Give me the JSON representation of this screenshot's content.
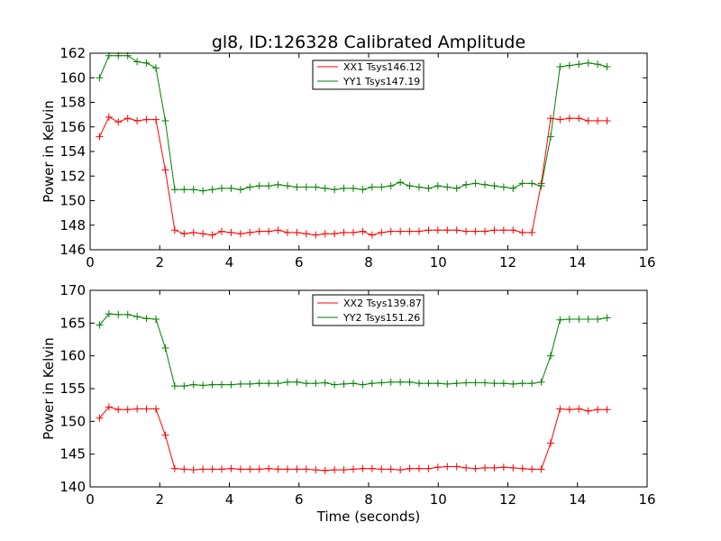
{
  "chart_data": [
    {
      "type": "line",
      "title": "gl8, ID:126328 Calibrated Amplitude",
      "xlabel": "",
      "ylabel": "Power in Kelvin",
      "xlim": [
        0,
        16
      ],
      "ylim": [
        146,
        162
      ],
      "xticks": [
        "0",
        "2",
        "4",
        "6",
        "8",
        "10",
        "12",
        "14",
        "16"
      ],
      "yticks": [
        "146",
        "148",
        "150",
        "152",
        "154",
        "156",
        "158",
        "160",
        "162"
      ],
      "legend_position": "top-center",
      "grid": false,
      "x": [
        0.27,
        0.54,
        0.81,
        1.08,
        1.35,
        1.62,
        1.89,
        2.16,
        2.43,
        2.7,
        2.97,
        3.24,
        3.51,
        3.78,
        4.05,
        4.32,
        4.59,
        4.86,
        5.13,
        5.4,
        5.67,
        5.94,
        6.21,
        6.48,
        6.75,
        7.02,
        7.29,
        7.56,
        7.83,
        8.1,
        8.37,
        8.64,
        8.91,
        9.18,
        9.45,
        9.72,
        9.99,
        10.26,
        10.53,
        10.8,
        11.07,
        11.34,
        11.61,
        11.88,
        12.15,
        12.42,
        12.69,
        12.96,
        13.23,
        13.5,
        13.77,
        14.04,
        14.31,
        14.58,
        14.85
      ],
      "series": [
        {
          "name": "XX1 Tsys146.12",
          "color": "#ff0000",
          "values": [
            155.2,
            156.8,
            156.4,
            156.7,
            156.5,
            156.6,
            156.6,
            152.5,
            147.6,
            147.3,
            147.4,
            147.3,
            147.2,
            147.5,
            147.4,
            147.3,
            147.4,
            147.5,
            147.5,
            147.6,
            147.4,
            147.4,
            147.3,
            147.2,
            147.3,
            147.3,
            147.4,
            147.4,
            147.5,
            147.2,
            147.4,
            147.5,
            147.5,
            147.5,
            147.5,
            147.6,
            147.6,
            147.6,
            147.6,
            147.5,
            147.5,
            147.5,
            147.6,
            147.6,
            147.6,
            147.4,
            147.4,
            151.4,
            156.7,
            156.6,
            156.7,
            156.7,
            156.5,
            156.5,
            156.5
          ]
        },
        {
          "name": "YY1 Tsys147.19",
          "color": "#008000",
          "values": [
            160.0,
            161.8,
            161.8,
            161.8,
            161.3,
            161.2,
            160.8,
            156.5,
            150.9,
            150.9,
            150.9,
            150.8,
            150.9,
            151.0,
            151.0,
            150.9,
            151.1,
            151.2,
            151.2,
            151.3,
            151.2,
            151.1,
            151.1,
            151.1,
            151.0,
            150.9,
            151.0,
            151.0,
            150.9,
            151.1,
            151.1,
            151.2,
            151.5,
            151.2,
            151.1,
            151.0,
            151.2,
            151.1,
            151.0,
            151.3,
            151.4,
            151.3,
            151.2,
            151.1,
            151.0,
            151.4,
            151.4,
            151.2,
            155.2,
            160.9,
            161.0,
            161.1,
            161.2,
            161.1,
            160.9
          ]
        }
      ]
    },
    {
      "type": "line",
      "title": "",
      "xlabel": "Time (seconds)",
      "ylabel": "Power in Kelvin",
      "xlim": [
        0,
        16
      ],
      "ylim": [
        140,
        170
      ],
      "xticks": [
        "0",
        "2",
        "4",
        "6",
        "8",
        "10",
        "12",
        "14",
        "16"
      ],
      "yticks": [
        "140",
        "145",
        "150",
        "155",
        "160",
        "165",
        "170"
      ],
      "legend_position": "top-center",
      "grid": false,
      "x": [
        0.27,
        0.54,
        0.81,
        1.08,
        1.35,
        1.62,
        1.89,
        2.16,
        2.43,
        2.7,
        2.97,
        3.24,
        3.51,
        3.78,
        4.05,
        4.32,
        4.59,
        4.86,
        5.13,
        5.4,
        5.67,
        5.94,
        6.21,
        6.48,
        6.75,
        7.02,
        7.29,
        7.56,
        7.83,
        8.1,
        8.37,
        8.64,
        8.91,
        9.18,
        9.45,
        9.72,
        9.99,
        10.26,
        10.53,
        10.8,
        11.07,
        11.34,
        11.61,
        11.88,
        12.15,
        12.42,
        12.69,
        12.96,
        13.23,
        13.5,
        13.77,
        14.04,
        14.31,
        14.58,
        14.85
      ],
      "series": [
        {
          "name": "XX2 Tsys139.87",
          "color": "#ff0000",
          "values": [
            150.5,
            152.2,
            151.8,
            151.8,
            151.9,
            151.9,
            151.9,
            147.9,
            142.8,
            142.7,
            142.6,
            142.7,
            142.7,
            142.7,
            142.8,
            142.7,
            142.7,
            142.7,
            142.8,
            142.7,
            142.7,
            142.7,
            142.7,
            142.6,
            142.5,
            142.6,
            142.6,
            142.7,
            142.8,
            142.8,
            142.7,
            142.7,
            142.6,
            142.8,
            142.8,
            142.8,
            143.0,
            143.1,
            143.1,
            142.9,
            142.8,
            142.9,
            142.9,
            143.0,
            142.9,
            142.8,
            142.7,
            142.7,
            146.7,
            151.9,
            151.8,
            151.9,
            151.6,
            151.8,
            151.8
          ]
        },
        {
          "name": "YY2 Tsys151.26",
          "color": "#008000",
          "values": [
            164.7,
            166.4,
            166.3,
            166.3,
            166.0,
            165.7,
            165.6,
            161.2,
            155.4,
            155.4,
            155.6,
            155.5,
            155.6,
            155.6,
            155.6,
            155.7,
            155.7,
            155.8,
            155.8,
            155.8,
            156.0,
            156.0,
            155.8,
            155.8,
            155.9,
            155.6,
            155.7,
            155.8,
            155.6,
            155.8,
            155.9,
            156.0,
            156.0,
            156.0,
            155.8,
            155.8,
            155.8,
            155.7,
            155.8,
            155.9,
            155.9,
            155.9,
            155.8,
            155.8,
            155.7,
            155.8,
            155.8,
            156.0,
            160.0,
            165.5,
            165.6,
            165.6,
            165.6,
            165.6,
            165.8
          ]
        }
      ]
    }
  ]
}
